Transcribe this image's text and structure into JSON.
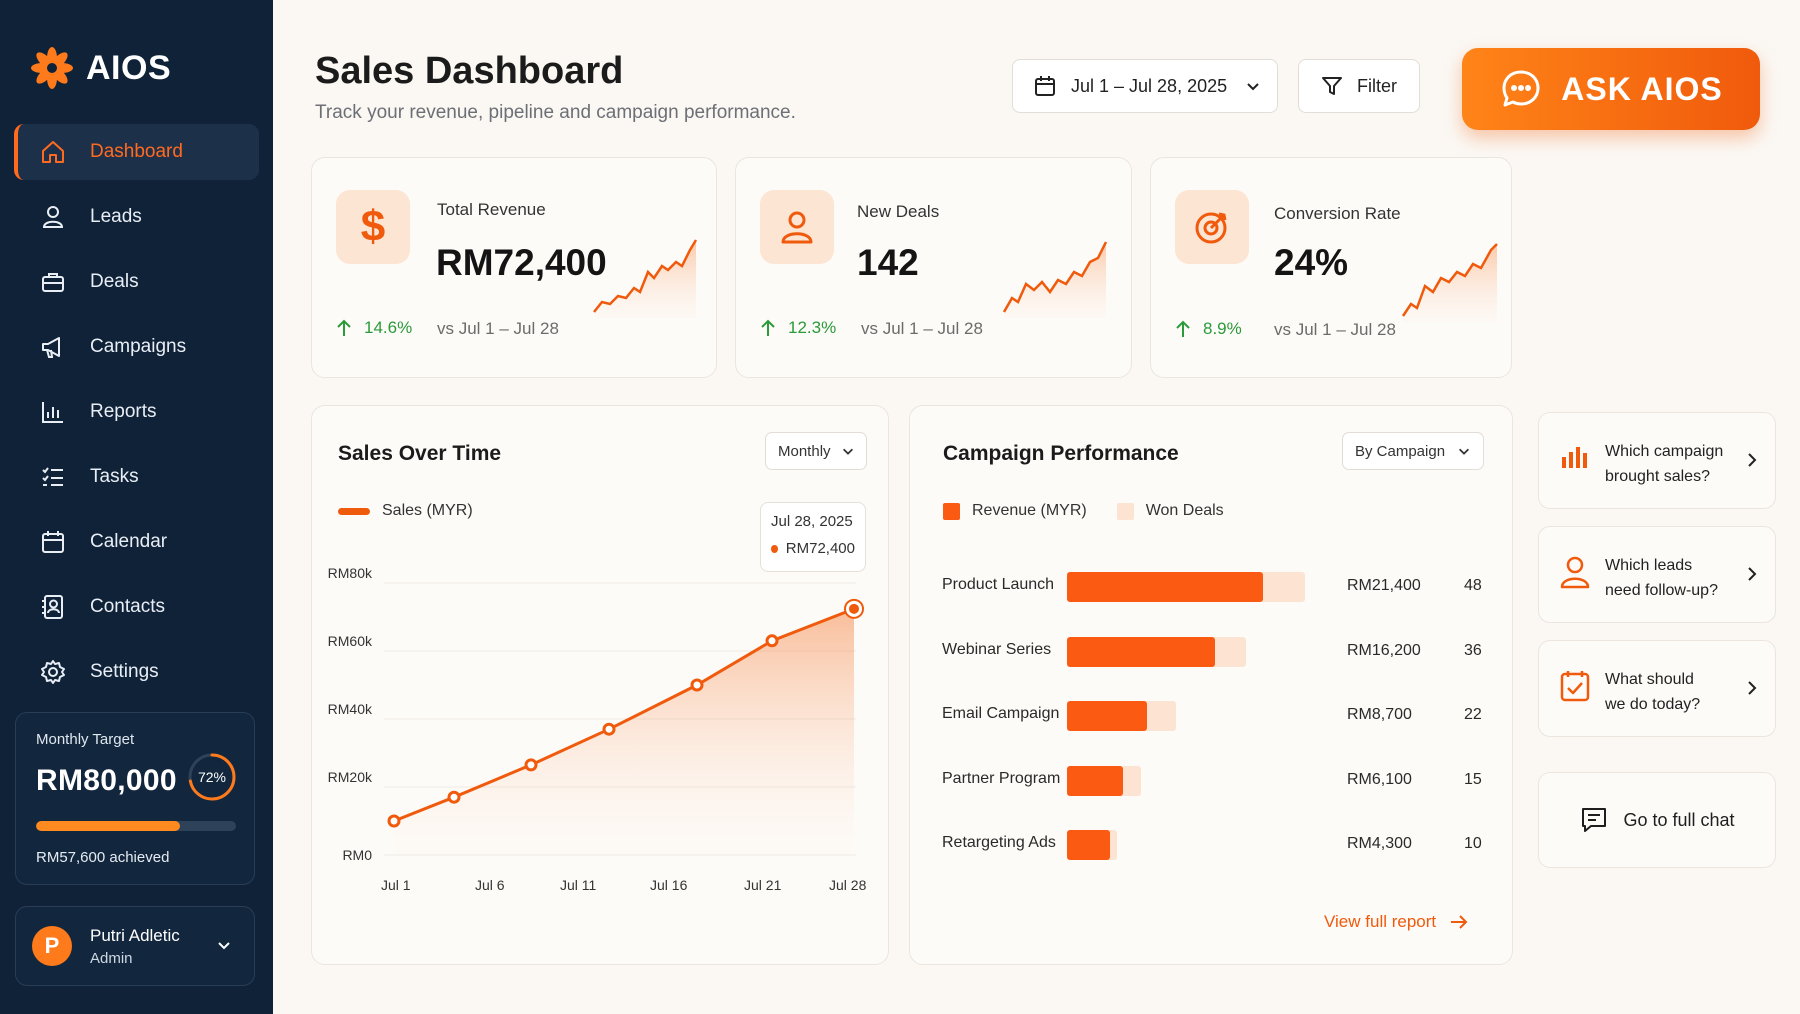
{
  "app": {
    "name": "AIOS"
  },
  "sidebar": {
    "items": [
      {
        "label": "Dashboard",
        "icon": "home-icon",
        "active": true
      },
      {
        "label": "Leads",
        "icon": "user-icon"
      },
      {
        "label": "Deals",
        "icon": "briefcase-icon"
      },
      {
        "label": "Campaigns",
        "icon": "megaphone-icon"
      },
      {
        "label": "Reports",
        "icon": "bar-chart-icon"
      },
      {
        "label": "Tasks",
        "icon": "checklist-icon"
      },
      {
        "label": "Calendar",
        "icon": "calendar-icon"
      },
      {
        "label": "Contacts",
        "icon": "contact-book-icon"
      },
      {
        "label": "Settings",
        "icon": "gear-icon"
      }
    ],
    "target": {
      "label": "Monthly Target",
      "value": "RM80,000",
      "percent_text": "72%",
      "progress": 0.72,
      "achieved": "RM57,600 achieved"
    },
    "user": {
      "initial": "P",
      "name": "Putri Adletic",
      "role": "Admin"
    }
  },
  "header": {
    "title": "Sales Dashboard",
    "subtitle": "Track your revenue, pipeline and campaign performance.",
    "date_range": "Jul 1 – Jul 28, 2025",
    "filter_label": "Filter",
    "ask_label": "ASK AIOS"
  },
  "kpis": [
    {
      "label": "Total Revenue",
      "value": "RM72,400",
      "delta": "14.6%",
      "compare": "vs Jul 1 – Jul 28",
      "icon": "dollar-icon"
    },
    {
      "label": "New Deals",
      "value": "142",
      "delta": "12.3%",
      "compare": "vs Jul 1 – Jul 28",
      "icon": "user-icon"
    },
    {
      "label": "Conversion Rate",
      "value": "24%",
      "delta": "8.9%",
      "compare": "vs Jul 1 – Jul 28",
      "icon": "target-icon"
    }
  ],
  "sales_chart": {
    "title": "Sales Over Time",
    "period": "Monthly",
    "legend": "Sales (MYR)",
    "tooltip_date": "Jul 28, 2025",
    "tooltip_value": "RM72,400"
  },
  "campaign_panel": {
    "title": "Campaign Performance",
    "group_by": "By Campaign",
    "legend_revenue": "Revenue (MYR)",
    "legend_deals": "Won Deals",
    "view_report": "View full report"
  },
  "chart_data": [
    {
      "type": "area",
      "title": "Sales Over Time",
      "series": [
        {
          "name": "Sales (MYR)",
          "x": [
            "Jul 1",
            "Jul 3",
            "Jul 6",
            "Jul 11",
            "Jul 16",
            "Jul 21",
            "Jul 28"
          ],
          "values": [
            10000,
            17000,
            26500,
            37000,
            50000,
            63000,
            72400
          ]
        }
      ],
      "xticks": [
        "Jul 1",
        "Jul 6",
        "Jul 11",
        "Jul 16",
        "Jul 21",
        "Jul 28"
      ],
      "yticks": [
        "RM0",
        "RM20k",
        "RM40k",
        "RM60k",
        "RM80k"
      ],
      "ylim": [
        0,
        80000
      ],
      "color": "#f05a0c"
    },
    {
      "type": "bar",
      "title": "Campaign Performance",
      "categories": [
        "Product Launch",
        "Webinar Series",
        "Email Campaign",
        "Partner Program",
        "Retargeting Ads"
      ],
      "series": [
        {
          "name": "Revenue (MYR)",
          "values": [
            21400,
            16200,
            8700,
            6100,
            4300
          ],
          "labels": [
            "RM21,400",
            "RM16,200",
            "RM8,700",
            "RM6,100",
            "RM4,300"
          ]
        },
        {
          "name": "Won Deals",
          "values": [
            48,
            36,
            22,
            15,
            10
          ]
        }
      ],
      "colors": {
        "revenue": "#fb5a12",
        "deals": "#fde3d2"
      }
    }
  ],
  "prompts": [
    {
      "line1": "Which campaign",
      "line2": "brought sales?",
      "icon": "bar-chart-icon"
    },
    {
      "line1": "Which leads",
      "line2": "need follow-up?",
      "icon": "user-icon"
    },
    {
      "line1": "What should",
      "line2": "we do today?",
      "icon": "calendar-check-icon"
    }
  ],
  "full_chat_label": "Go to full chat",
  "colors": {
    "accent": "#f05a0c",
    "sidebar": "#0f2238",
    "positive": "#2b9a3a"
  }
}
